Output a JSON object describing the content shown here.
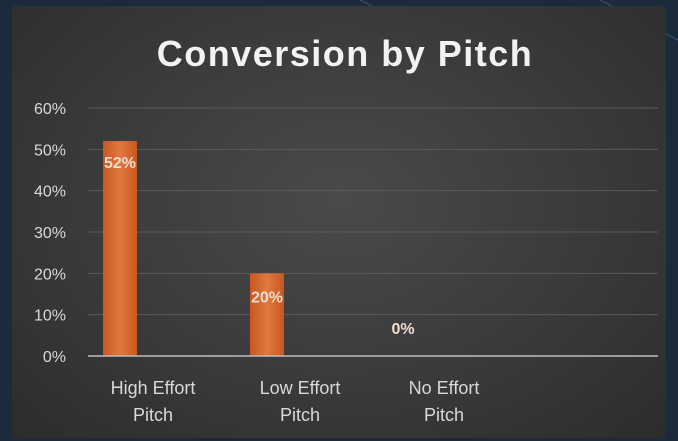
{
  "chart_data": {
    "type": "bar",
    "title": "Conversion by Pitch",
    "categories": [
      [
        "High Effort",
        "Pitch"
      ],
      [
        "Low Effort",
        "Pitch"
      ],
      [
        "No Effort",
        "Pitch"
      ]
    ],
    "values": [
      0.52,
      0.2,
      0.0
    ],
    "data_labels": [
      "52%",
      "20%",
      "0%"
    ],
    "y_ticks": [
      "0%",
      "10%",
      "20%",
      "30%",
      "40%",
      "50%",
      "60%"
    ],
    "ylim": [
      0,
      0.6
    ],
    "xlabel": "",
    "ylabel": "",
    "grid": true,
    "legend": "none",
    "colors": {
      "bar": "#d9662d",
      "bar_highlight": "#e58a52",
      "grid": "#5a5a5a",
      "axis": "#bfbfbf"
    }
  }
}
